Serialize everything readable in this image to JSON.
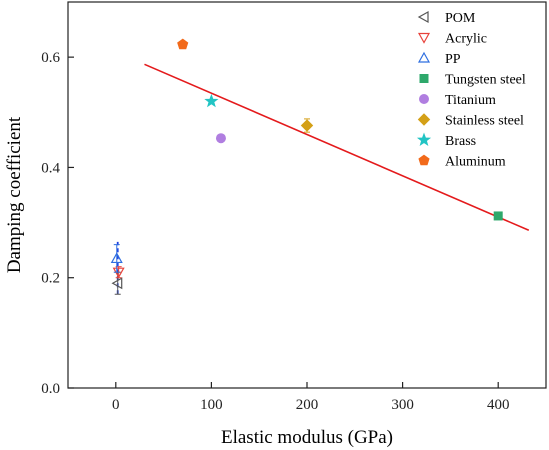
{
  "chart_data": {
    "type": "scatter",
    "title": "",
    "xlabel": "Elastic modulus (GPa)",
    "ylabel": "Damping coefficient",
    "xlim": [
      -50,
      450
    ],
    "ylim": [
      0.0,
      0.7
    ],
    "x_ticks": [
      0,
      100,
      200,
      300,
      400
    ],
    "y_ticks": [
      0.0,
      0.2,
      0.4,
      0.6
    ],
    "x_tick_labels": [
      "0",
      "100",
      "200",
      "300",
      "400"
    ],
    "y_tick_labels": [
      "0.0",
      "0.2",
      "0.4",
      "0.6"
    ],
    "grid": false,
    "legend_position": "top-right",
    "series": [
      {
        "name": "POM",
        "marker": "triangle-left",
        "filled": false,
        "color": "#555555",
        "x": [
          2
        ],
        "y": [
          0.19
        ],
        "error": [
          0.02
        ]
      },
      {
        "name": "Acrylic",
        "marker": "triangle-down",
        "filled": false,
        "color": "#e8423b",
        "x": [
          3
        ],
        "y": [
          0.21
        ],
        "error": [
          0.01
        ]
      },
      {
        "name": "PP",
        "marker": "triangle-up",
        "filled": false,
        "color": "#2f6fe0",
        "x": [
          1
        ],
        "y": [
          0.235
        ],
        "error": [
          0.025
        ]
      },
      {
        "name": "Tungsten steel",
        "marker": "square",
        "filled": true,
        "color": "#2ea86b",
        "x": [
          400
        ],
        "y": [
          0.312
        ],
        "error": [
          0.0
        ]
      },
      {
        "name": "Titanium",
        "marker": "circle",
        "filled": true,
        "color": "#b07ee0",
        "x": [
          110
        ],
        "y": [
          0.453
        ],
        "error": [
          0.0
        ]
      },
      {
        "name": "Stainless steel",
        "marker": "diamond",
        "filled": true,
        "color": "#d4a017",
        "x": [
          200
        ],
        "y": [
          0.476
        ],
        "error": [
          0.012
        ]
      },
      {
        "name": "Brass",
        "marker": "star",
        "filled": true,
        "color": "#22c4c4",
        "x": [
          100
        ],
        "y": [
          0.52
        ],
        "error": [
          0.0
        ]
      },
      {
        "name": "Aluminum",
        "marker": "pentagon",
        "filled": true,
        "color": "#f26a1b",
        "x": [
          70
        ],
        "y": [
          0.623
        ],
        "error": [
          0.0
        ]
      }
    ],
    "fit_line": {
      "color": "#e41a1c",
      "x": [
        30,
        432
      ],
      "y": [
        0.587,
        0.286
      ]
    },
    "dash_line": {
      "color": "#1f3fe0",
      "x": [
        2,
        2
      ],
      "y": [
        0.17,
        0.265
      ]
    }
  }
}
